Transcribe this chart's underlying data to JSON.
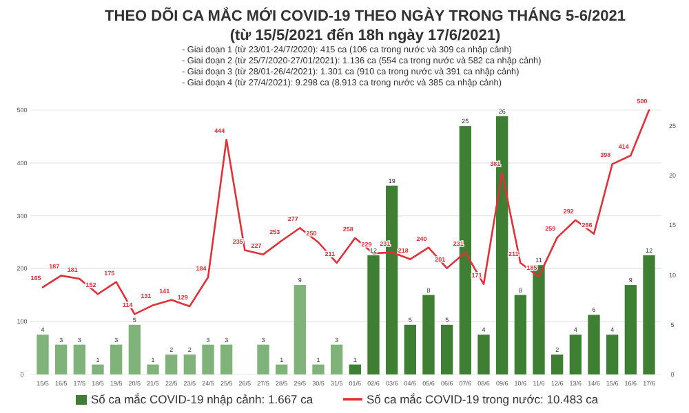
{
  "chart_data": {
    "type": "bar",
    "title": "THEO DÕI CA MẮC MỚI COVID-19 THEO NGÀY TRONG THÁNG 5-6/2021",
    "subtitle": "(từ 15/5/2021 đến 18h ngày 17/6/2021)",
    "annotations": [
      "- Giai đoạn 1 (từ 23/01-24/7/2020): 415 ca (106 ca trong nước và 309 ca nhập cảnh)",
      "- Giai đoạn 2 (từ 25/7/2020-27/01/2021): 1.136 ca (554 ca trong nước và 582 ca nhập cảnh)",
      "- Giai đoạn 3 (từ 28/01-26/4/2021): 1.301 ca (910 ca trong nước và 391 ca nhập cảnh)",
      "- Giai đoạn 4 (từ 27/4/2021): 9.298 ca (8.913 ca trong nước và 385 ca nhập cảnh)"
    ],
    "categories": [
      "15/5",
      "16/5",
      "17/5",
      "18/5",
      "19/5",
      "20/5",
      "21/5",
      "22/5",
      "23/5",
      "24/5",
      "25/5",
      "26/5",
      "27/5",
      "28/5",
      "29/5",
      "30/5",
      "31/5",
      "01/6",
      "02/6",
      "03/6",
      "04/6",
      "05/6",
      "06/6",
      "07/6",
      "08/6",
      "09/6",
      "10/6",
      "11/6",
      "12/6",
      "13/6",
      "14/6",
      "15/6",
      "16/6",
      "17/6"
    ],
    "series": [
      {
        "name": "Số ca mắc COVID-19 nhập cảnh: 1.667 ca",
        "axis": "y2",
        "color": "#3e7f33",
        "colors": [
          "#7fb37a",
          "#7fb37a",
          "#7fb37a",
          "#7fb37a",
          "#7fb37a",
          "#7fb37a",
          "#7fb37a",
          "#7fb37a",
          "#7fb37a",
          "#7fb37a",
          "#7fb37a",
          null,
          "#7fb37a",
          "#7fb37a",
          "#7fb37a",
          "#7fb37a",
          "#7fb37a",
          "#3e7f33",
          "#3e7f33",
          "#3e7f33",
          "#3e7f33",
          "#3e7f33",
          "#3e7f33",
          "#3e7f33",
          "#3e7f33",
          "#3e7f33",
          "#3e7f33",
          "#3e7f33",
          "#3e7f33",
          "#3e7f33",
          "#3e7f33",
          "#3e7f33",
          "#3e7f33",
          "#3e7f33"
        ],
        "values": [
          4,
          3,
          3,
          1,
          3,
          5,
          1,
          2,
          2,
          3,
          3,
          null,
          3,
          1,
          9,
          1,
          3,
          1,
          12,
          19,
          5,
          8,
          5,
          25,
          4,
          26,
          8,
          11,
          2,
          4,
          6,
          4,
          9,
          12
        ]
      },
      {
        "name": "Số ca mắc COVID-19 trong nước: 10.483 ca",
        "type": "line",
        "color": "#e0303a",
        "values": [
          165,
          187,
          181,
          152,
          175,
          114,
          131,
          141,
          129,
          184,
          444,
          235,
          227,
          253,
          277,
          250,
          211,
          258,
          229,
          231,
          218,
          240,
          201,
          231,
          171,
          381,
          211,
          185,
          259,
          292,
          266,
          398,
          414,
          500
        ]
      }
    ],
    "ylim": [
      0,
      500
    ],
    "yticks": [
      0,
      100,
      200,
      300,
      400,
      500
    ],
    "y2lim": [
      0,
      26.6
    ],
    "y2ticks": [
      0,
      5,
      10,
      15,
      20,
      25
    ],
    "grid": "y",
    "data_labels": true,
    "legend": "bottom"
  }
}
